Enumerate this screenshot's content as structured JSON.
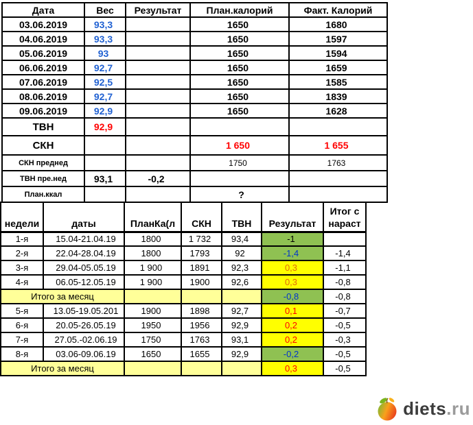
{
  "colors": {
    "weight_blue": "#2061D2",
    "value_red": "#FF0000",
    "result_blue": "#0033CC",
    "result_orange": "#E26B0A",
    "green_fill": "#8FC152",
    "yellow_fill": "#FFFF00",
    "light_yellow_fill": "#FFFF99",
    "grid": "#000000",
    "logo_dark": "#3C3C3C",
    "logo_gray": "#9B9B9B"
  },
  "top_table": {
    "columns": [
      "Дата",
      "Вес",
      "Результат",
      "План.калорий",
      "Факт. Калорий"
    ],
    "column_keys": [
      "date",
      "weight",
      "result",
      "plan-cal",
      "fact-cal"
    ],
    "rows": [
      {
        "cls": "",
        "cells": [
          {
            "t": "03.06.2019"
          },
          {
            "t": "93,3",
            "s": "num blue"
          },
          {
            "t": ""
          },
          {
            "t": "1650",
            "s": "num"
          },
          {
            "t": "1680",
            "s": "num"
          }
        ]
      },
      {
        "cls": "",
        "cells": [
          {
            "t": "04.06.2019"
          },
          {
            "t": "93,3",
            "s": "num blue"
          },
          {
            "t": ""
          },
          {
            "t": "1650",
            "s": "num"
          },
          {
            "t": "1597",
            "s": "num"
          }
        ]
      },
      {
        "cls": "",
        "cells": [
          {
            "t": "05.06.2019"
          },
          {
            "t": "93",
            "s": "num blue"
          },
          {
            "t": ""
          },
          {
            "t": "1650",
            "s": "num"
          },
          {
            "t": "1594",
            "s": "num"
          }
        ]
      },
      {
        "cls": "",
        "cells": [
          {
            "t": "06.06.2019"
          },
          {
            "t": "92,7",
            "s": "num blue"
          },
          {
            "t": ""
          },
          {
            "t": "1650",
            "s": "num"
          },
          {
            "t": "1659",
            "s": "num"
          }
        ]
      },
      {
        "cls": "",
        "cells": [
          {
            "t": "07.06.2019"
          },
          {
            "t": "92,5",
            "s": "num blue"
          },
          {
            "t": ""
          },
          {
            "t": "1650",
            "s": "num"
          },
          {
            "t": "1585",
            "s": "num"
          }
        ]
      },
      {
        "cls": "",
        "cells": [
          {
            "t": "08.06.2019"
          },
          {
            "t": "92,7",
            "s": "num blue"
          },
          {
            "t": ""
          },
          {
            "t": "1650",
            "s": "num"
          },
          {
            "t": "1839",
            "s": "num"
          }
        ]
      },
      {
        "cls": "",
        "cells": [
          {
            "t": "09.06.2019"
          },
          {
            "t": "92,9",
            "s": "num blue"
          },
          {
            "t": ""
          },
          {
            "t": "1650",
            "s": "num"
          },
          {
            "t": "1628",
            "s": "num"
          }
        ]
      },
      {
        "cls": "r-tvn",
        "cells": [
          {
            "t": "ТВН",
            "s": "biglbl"
          },
          {
            "t": "92,9",
            "s": "num red"
          },
          {
            "t": ""
          },
          {
            "t": ""
          },
          {
            "t": ""
          }
        ]
      },
      {
        "cls": "r-skn thickb",
        "cells": [
          {
            "t": "СКН",
            "s": "biglbl"
          },
          {
            "t": ""
          },
          {
            "t": ""
          },
          {
            "t": "1 650",
            "s": "num red"
          },
          {
            "t": "1 655",
            "s": "num red"
          }
        ]
      },
      {
        "cls": "r-mid thickb",
        "cells": [
          {
            "t": "СКН преднед",
            "s": "smalllbl"
          },
          {
            "t": ""
          },
          {
            "t": ""
          },
          {
            "t": "1750",
            "s": "numplain"
          },
          {
            "t": "1763",
            "s": "numplain"
          }
        ]
      },
      {
        "cls": "r-mid thickb",
        "cells": [
          {
            "t": "ТВН пре.нед",
            "s": "smalllbl"
          },
          {
            "t": "93,1",
            "s": "num"
          },
          {
            "t": "-0,2",
            "s": "num"
          },
          {
            "t": ""
          },
          {
            "t": ""
          }
        ]
      },
      {
        "cls": "r-mid",
        "cells": [
          {
            "t": "План.ккал",
            "s": "smalllbl"
          },
          {
            "t": ""
          },
          {
            "t": ""
          },
          {
            "t": "?",
            "s": "qmark"
          },
          {
            "t": ""
          }
        ]
      }
    ]
  },
  "bottom_table": {
    "columns": [
      "недели",
      "даты",
      "ПланКа(л",
      "СКН",
      "ТВН",
      "Результат",
      "Итог с\nнараст"
    ],
    "column_keys": [
      "week",
      "dates",
      "plan-cal",
      "skn",
      "tvn",
      "result",
      "cumulative"
    ],
    "rows": [
      {
        "cls": "",
        "cells": [
          {
            "t": "1-я"
          },
          {
            "t": "15.04-21.04.19",
            "s": "dts"
          },
          {
            "t": "1800",
            "s": "bnum"
          },
          {
            "t": "1 732",
            "s": "bnum"
          },
          {
            "t": "93,4",
            "s": "bnum"
          },
          {
            "t": "-1",
            "s": "res bg-green"
          },
          {
            "t": ""
          }
        ]
      },
      {
        "cls": "",
        "cells": [
          {
            "t": "2-я"
          },
          {
            "t": "22.04-28.04.19",
            "s": "dts"
          },
          {
            "t": "1800",
            "s": "bnum"
          },
          {
            "t": "1793",
            "s": "bnum"
          },
          {
            "t": "92",
            "s": "bnum"
          },
          {
            "t": "-1,4",
            "s": "res bg-green bluetxt"
          },
          {
            "t": "-1,4",
            "s": "bnum"
          }
        ]
      },
      {
        "cls": "",
        "cells": [
          {
            "t": "3-я"
          },
          {
            "t": "29.04-05.05.19",
            "s": "dts"
          },
          {
            "t": "1 900",
            "s": "bnum"
          },
          {
            "t": "1891",
            "s": "bnum"
          },
          {
            "t": "92,3",
            "s": "bnum"
          },
          {
            "t": "0,3",
            "s": "res plainres bg-yellow orangetxt"
          },
          {
            "t": "-1,1",
            "s": "bnum"
          }
        ]
      },
      {
        "cls": "",
        "cells": [
          {
            "t": "4-я"
          },
          {
            "t": "06.05-12.05.19",
            "s": "dts"
          },
          {
            "t": "1 900",
            "s": "bnum"
          },
          {
            "t": "1900",
            "s": "bnum"
          },
          {
            "t": "92,6",
            "s": "bnum"
          },
          {
            "t": "0,3",
            "s": "res plainres bg-yellow orangetxt"
          },
          {
            "t": "-0,8",
            "s": "bnum"
          }
        ]
      },
      {
        "cls": "thickb",
        "cells": [
          {
            "t": "Итого за месяц",
            "s": "itogo",
            "span": 2
          },
          {
            "t": "",
            "s": "bg-light"
          },
          {
            "t": "",
            "s": "bg-light"
          },
          {
            "t": "",
            "s": "bg-light"
          },
          {
            "t": "-0,8",
            "s": "res bg-green bluetxt"
          },
          {
            "t": "-0,8",
            "s": "bnum"
          }
        ]
      },
      {
        "cls": "",
        "cells": [
          {
            "t": "5-я"
          },
          {
            "t": "13.05-19.05.201",
            "s": "dts"
          },
          {
            "t": "1900",
            "s": "bnum"
          },
          {
            "t": "1898",
            "s": "bnum"
          },
          {
            "t": "92,7",
            "s": "bnum"
          },
          {
            "t": "0,1",
            "s": "res bg-yellow redtxt"
          },
          {
            "t": "-0,7",
            "s": "bnum"
          }
        ]
      },
      {
        "cls": "",
        "cells": [
          {
            "t": "6-я"
          },
          {
            "t": "20.05-26.05.19",
            "s": "dts"
          },
          {
            "t": "1950",
            "s": "bnum"
          },
          {
            "t": "1956",
            "s": "bnum"
          },
          {
            "t": "92,9",
            "s": "bnum"
          },
          {
            "t": "0,2",
            "s": "res bg-yellow redtxt"
          },
          {
            "t": "-0,5",
            "s": "bnum"
          }
        ]
      },
      {
        "cls": "",
        "cells": [
          {
            "t": "7-я"
          },
          {
            "t": "27.05.-02.06.19",
            "s": "dts"
          },
          {
            "t": "1750",
            "s": "bnum"
          },
          {
            "t": "1763",
            "s": "bnum"
          },
          {
            "t": "93,1",
            "s": "bnum"
          },
          {
            "t": "0,2",
            "s": "res bg-yellow redtxt"
          },
          {
            "t": "-0,3",
            "s": "bnum"
          }
        ]
      },
      {
        "cls": "",
        "cells": [
          {
            "t": "8-я"
          },
          {
            "t": "03.06-09.06.19",
            "s": "dts"
          },
          {
            "t": "1650",
            "s": "bnum"
          },
          {
            "t": "1655",
            "s": "bnum"
          },
          {
            "t": "92,9",
            "s": "bnum"
          },
          {
            "t": "-0,2",
            "s": "res bg-green bluetxt"
          },
          {
            "t": "-0,5",
            "s": "bnum"
          }
        ]
      },
      {
        "cls": "",
        "cells": [
          {
            "t": "Итого за месяц",
            "s": "itogo",
            "span": 2
          },
          {
            "t": "",
            "s": "bg-light"
          },
          {
            "t": "",
            "s": "bg-light"
          },
          {
            "t": "",
            "s": "bg-light"
          },
          {
            "t": "0,3",
            "s": "res bg-yellow redtxt"
          },
          {
            "t": "-0,5",
            "s": "bnum"
          }
        ]
      }
    ]
  },
  "logo": {
    "name": "diets",
    "tld": ".ru"
  }
}
